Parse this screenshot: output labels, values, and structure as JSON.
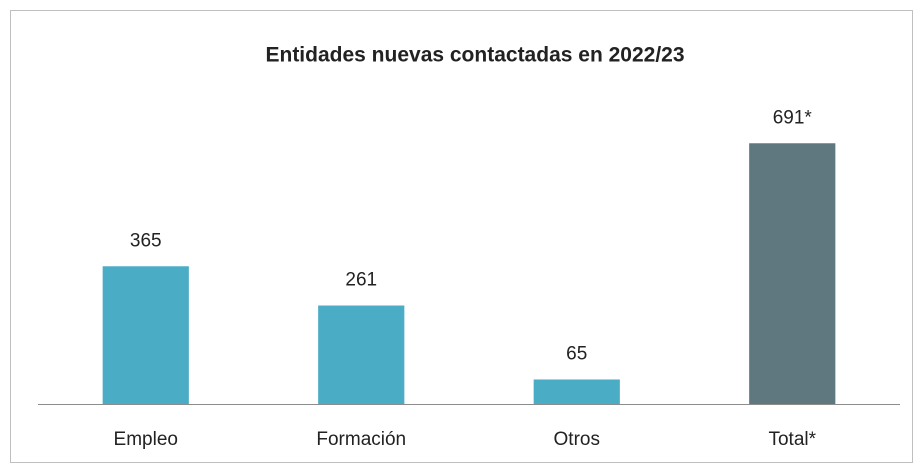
{
  "chart_data": {
    "type": "bar",
    "title": "Entidades nuevas contactadas en 2022/23",
    "categories": [
      "Empleo",
      "Formación",
      "Otros",
      "Total*"
    ],
    "values": [
      365,
      261,
      65,
      691
    ],
    "value_labels": [
      "365",
      "261",
      "65",
      "691*"
    ],
    "colors": [
      "#4bacc6",
      "#4bacc6",
      "#4bacc6",
      "#5f7880"
    ],
    "ylim": [
      0,
      750
    ]
  }
}
